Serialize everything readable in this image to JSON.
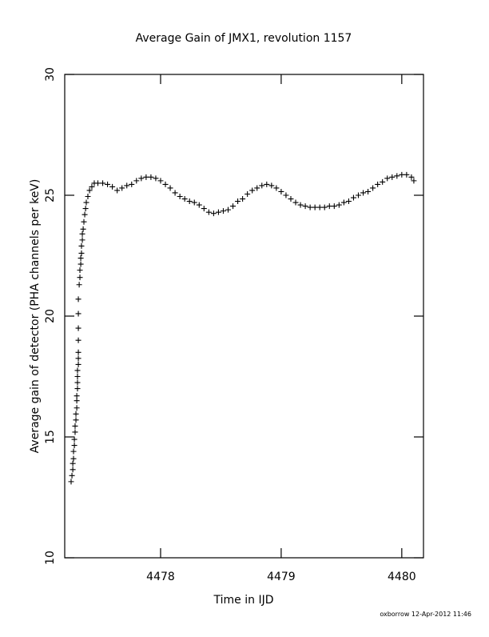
{
  "chart_data": {
    "type": "scatter",
    "title": "Average Gain of JMX1, revolution 1157",
    "x_label": "Time in IJD",
    "y_label": "Average gain of detector (PHA channels per keV)",
    "footer": "oxborrow 12-Apr-2012 11:46",
    "color": "#000000",
    "xlim": [
      4477.205,
      4480.18
    ],
    "ylim": [
      10,
      30
    ],
    "xticks": [
      4478,
      4479,
      4480
    ],
    "yticks": [
      10,
      15,
      20,
      25,
      30
    ],
    "x": [
      4477.258,
      4477.265,
      4477.272,
      4477.272,
      4477.278,
      4477.278,
      4477.285,
      4477.285,
      4477.291,
      4477.291,
      4477.298,
      4477.298,
      4477.305,
      4477.305,
      4477.305,
      4477.311,
      4477.311,
      4477.311,
      4477.311,
      4477.318,
      4477.318,
      4477.318,
      4477.318,
      4477.318,
      4477.318,
      4477.318,
      4477.325,
      4477.331,
      4477.331,
      4477.338,
      4477.338,
      4477.344,
      4477.344,
      4477.351,
      4477.351,
      4477.358,
      4477.364,
      4477.371,
      4477.378,
      4477.384,
      4477.397,
      4477.411,
      4477.43,
      4477.45,
      4477.48,
      4477.52,
      4477.56,
      4477.6,
      4477.64,
      4477.68,
      4477.72,
      4477.76,
      4477.8,
      4477.84,
      4477.88,
      4477.92,
      4477.96,
      4478.0,
      4478.04,
      4478.08,
      4478.12,
      4478.16,
      4478.2,
      4478.24,
      4478.28,
      4478.32,
      4478.36,
      4478.4,
      4478.44,
      4478.48,
      4478.52,
      4478.56,
      4478.6,
      4478.64,
      4478.68,
      4478.72,
      4478.76,
      4478.8,
      4478.84,
      4478.88,
      4478.92,
      4478.96,
      4479.0,
      4479.04,
      4479.08,
      4479.12,
      4479.16,
      4479.2,
      4479.24,
      4479.28,
      4479.32,
      4479.36,
      4479.4,
      4479.44,
      4479.48,
      4479.52,
      4479.56,
      4479.6,
      4479.64,
      4479.68,
      4479.72,
      4479.76,
      4479.8,
      4479.84,
      4479.88,
      4479.92,
      4479.96,
      4480.0,
      4480.04,
      4480.08,
      4480.1
    ],
    "values": [
      13.15,
      13.4,
      13.65,
      13.9,
      14.1,
      14.4,
      14.65,
      14.9,
      15.2,
      15.45,
      15.7,
      15.95,
      16.2,
      16.5,
      16.7,
      17.0,
      17.25,
      17.5,
      17.75,
      18.0,
      18.25,
      18.5,
      19.0,
      19.5,
      20.1,
      20.7,
      21.3,
      21.6,
      21.9,
      22.15,
      22.4,
      22.6,
      22.9,
      23.15,
      23.4,
      23.6,
      23.9,
      24.2,
      24.45,
      24.7,
      24.95,
      25.2,
      25.35,
      25.5,
      25.5,
      25.5,
      25.45,
      25.35,
      25.2,
      25.3,
      25.4,
      25.45,
      25.6,
      25.7,
      25.75,
      25.75,
      25.7,
      25.6,
      25.45,
      25.3,
      25.1,
      24.95,
      24.85,
      24.75,
      24.7,
      24.6,
      24.45,
      24.3,
      24.25,
      24.3,
      24.35,
      24.4,
      24.55,
      24.75,
      24.85,
      25.05,
      25.2,
      25.3,
      25.4,
      25.45,
      25.4,
      25.3,
      25.15,
      25.0,
      24.85,
      24.7,
      24.6,
      24.55,
      24.5,
      24.5,
      24.5,
      24.5,
      24.55,
      24.55,
      24.6,
      24.7,
      24.75,
      24.9,
      25.0,
      25.1,
      25.15,
      25.3,
      25.45,
      25.55,
      25.7,
      25.75,
      25.8,
      25.85,
      25.85,
      25.75,
      25.6
    ]
  }
}
